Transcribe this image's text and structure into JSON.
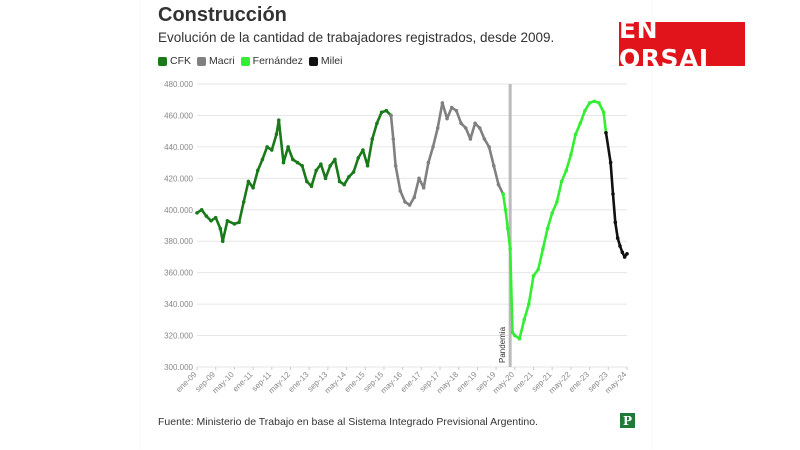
{
  "header": {
    "title": "Construcción",
    "subtitle": "Evolución de la cantidad de trabajadores registrados, desde 2009.",
    "brand": "EN ORSAI"
  },
  "legend": [
    {
      "label": "CFK",
      "color": "#1a7a1a"
    },
    {
      "label": "Macri",
      "color": "#808080"
    },
    {
      "label": "Fernández",
      "color": "#33ee33"
    },
    {
      "label": "Milei",
      "color": "#111111"
    }
  ],
  "footer": {
    "source": "Fuente: Ministerio de Trabajo en base al Sistema Integrado Previsional Argentino.",
    "logo": "P"
  },
  "chart_data": {
    "type": "line",
    "title": "Construcción",
    "subtitle": "Evolución de la cantidad de trabajadores registrados, desde 2009.",
    "ylim": [
      300000,
      480000
    ],
    "y_ticks": [
      "300.000",
      "320.000",
      "340.000",
      "360.000",
      "380.000",
      "400.000",
      "420.000",
      "440.000",
      "460.000",
      "480.000"
    ],
    "y_tick_values": [
      300000,
      320000,
      340000,
      360000,
      380000,
      400000,
      420000,
      440000,
      460000,
      480000
    ],
    "x_ticks": [
      "ene-09",
      "sep-09",
      "may-10",
      "ene-11",
      "sep-11",
      "may-12",
      "ene-13",
      "sep-13",
      "may-14",
      "ene-15",
      "sep-15",
      "may-16",
      "ene-17",
      "sep-17",
      "may-18",
      "ene-19",
      "sep-19",
      "may-20",
      "ene-21",
      "sep-21",
      "may-22",
      "ene-23",
      "sep-23",
      "may-24"
    ],
    "grid": true,
    "legend_placement": "top-left",
    "annotation": {
      "label": "Pandemia",
      "x": "mar-20"
    },
    "series": [
      {
        "name": "CFK",
        "color": "#1a7a1a",
        "points": [
          [
            "ene-09",
            398000
          ],
          [
            "mar-09",
            400000
          ],
          [
            "may-09",
            396000
          ],
          [
            "jul-09",
            393000
          ],
          [
            "sep-09",
            395000
          ],
          [
            "nov-09",
            388000
          ],
          [
            "dic-09",
            380000
          ],
          [
            "feb-10",
            393000
          ],
          [
            "may-10",
            391000
          ],
          [
            "jul-10",
            392000
          ],
          [
            "sep-10",
            405000
          ],
          [
            "nov-10",
            418000
          ],
          [
            "ene-11",
            414000
          ],
          [
            "mar-11",
            425000
          ],
          [
            "may-11",
            432000
          ],
          [
            "jul-11",
            440000
          ],
          [
            "sep-11",
            438000
          ],
          [
            "nov-11",
            448000
          ],
          [
            "dic-11",
            457000
          ],
          [
            "feb-12",
            430000
          ],
          [
            "abr-12",
            440000
          ],
          [
            "jun-12",
            432000
          ],
          [
            "ago-12",
            430000
          ],
          [
            "oct-12",
            428000
          ],
          [
            "dic-12",
            418000
          ],
          [
            "feb-13",
            415000
          ],
          [
            "abr-13",
            425000
          ],
          [
            "jun-13",
            429000
          ],
          [
            "ago-13",
            420000
          ],
          [
            "oct-13",
            428000
          ],
          [
            "dic-13",
            432000
          ],
          [
            "feb-14",
            418000
          ],
          [
            "abr-14",
            416000
          ],
          [
            "jun-14",
            421000
          ],
          [
            "ago-14",
            424000
          ],
          [
            "oct-14",
            433000
          ],
          [
            "dic-14",
            438000
          ],
          [
            "feb-15",
            428000
          ],
          [
            "abr-15",
            445000
          ],
          [
            "jun-15",
            455000
          ],
          [
            "ago-15",
            462000
          ],
          [
            "oct-15",
            463000
          ],
          [
            "dic-15",
            460000
          ]
        ]
      },
      {
        "name": "Macri",
        "color": "#808080",
        "points": [
          [
            "dic-15",
            460000
          ],
          [
            "ene-16",
            445000
          ],
          [
            "feb-16",
            428000
          ],
          [
            "abr-16",
            412000
          ],
          [
            "jun-16",
            405000
          ],
          [
            "ago-16",
            403000
          ],
          [
            "oct-16",
            408000
          ],
          [
            "dic-16",
            420000
          ],
          [
            "feb-17",
            414000
          ],
          [
            "abr-17",
            430000
          ],
          [
            "jun-17",
            440000
          ],
          [
            "ago-17",
            452000
          ],
          [
            "oct-17",
            468000
          ],
          [
            "dic-17",
            458000
          ],
          [
            "feb-18",
            465000
          ],
          [
            "abr-18",
            463000
          ],
          [
            "jun-18",
            455000
          ],
          [
            "ago-18",
            452000
          ],
          [
            "oct-18",
            445000
          ],
          [
            "dic-18",
            455000
          ],
          [
            "feb-19",
            452000
          ],
          [
            "abr-19",
            445000
          ],
          [
            "jun-19",
            440000
          ],
          [
            "ago-19",
            428000
          ],
          [
            "oct-19",
            416000
          ],
          [
            "dic-19",
            410000
          ]
        ]
      },
      {
        "name": "Fernández",
        "color": "#33ee33",
        "points": [
          [
            "dic-19",
            410000
          ],
          [
            "ene-20",
            400000
          ],
          [
            "feb-20",
            388000
          ],
          [
            "mar-20",
            375000
          ],
          [
            "abr-20",
            322000
          ],
          [
            "may-20",
            320000
          ],
          [
            "jul-20",
            318000
          ],
          [
            "sep-20",
            330000
          ],
          [
            "nov-20",
            340000
          ],
          [
            "ene-21",
            358000
          ],
          [
            "mar-21",
            362000
          ],
          [
            "may-21",
            375000
          ],
          [
            "jul-21",
            388000
          ],
          [
            "sep-21",
            398000
          ],
          [
            "nov-21",
            405000
          ],
          [
            "ene-22",
            418000
          ],
          [
            "mar-22",
            425000
          ],
          [
            "may-22",
            435000
          ],
          [
            "jul-22",
            448000
          ],
          [
            "sep-22",
            455000
          ],
          [
            "nov-22",
            463000
          ],
          [
            "ene-23",
            468000
          ],
          [
            "mar-23",
            469000
          ],
          [
            "may-23",
            468000
          ],
          [
            "jul-23",
            462000
          ],
          [
            "ago-23",
            449000
          ]
        ]
      },
      {
        "name": "Milei",
        "color": "#111111",
        "points": [
          [
            "ago-23",
            449000
          ],
          [
            "oct-23",
            430000
          ],
          [
            "nov-23",
            410000
          ],
          [
            "dic-23",
            392000
          ],
          [
            "ene-24",
            382000
          ],
          [
            "feb-24",
            377000
          ],
          [
            "mar-24",
            373000
          ],
          [
            "abr-24",
            370000
          ],
          [
            "may-24",
            372000
          ]
        ]
      }
    ]
  }
}
